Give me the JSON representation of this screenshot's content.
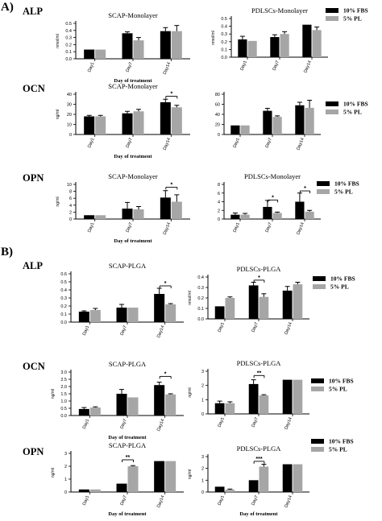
{
  "figure": {
    "panel_a": "A)",
    "panel_b": "B)",
    "legend": {
      "fbs_label": "10% FBS",
      "pl_label": "5% PL"
    },
    "colors": {
      "fbs": "#000000",
      "pl": "#a6a6a6"
    }
  },
  "chart_data": [
    {
      "type": "bar",
      "row_label": "ALP",
      "title": "SCAP-Monolayer",
      "categories": [
        "Day1",
        "Day7",
        "Day14"
      ],
      "ylabel": "nmol/ml",
      "xlabel": "Day of treatment",
      "ylim": [
        0,
        0.5
      ],
      "yticks": [
        "0.0",
        "0.1",
        "0.2",
        "0.3",
        "0.4",
        "0.5"
      ],
      "series": [
        {
          "name": "10% FBS",
          "values": [
            0.13,
            0.36,
            0.39
          ],
          "errors": [
            0.0,
            0.02,
            0.05
          ]
        },
        {
          "name": "5% PL",
          "values": [
            0.13,
            0.26,
            0.39
          ],
          "errors": [
            0.0,
            0.04,
            0.08
          ]
        }
      ],
      "brackets": []
    },
    {
      "type": "bar",
      "title": "PDLSCs-Monolayer",
      "categories": [
        "Day1",
        "Day7",
        "Day14"
      ],
      "ylabel": "nmol/ml",
      "xlabel": "",
      "ylim": [
        0,
        0.5
      ],
      "yticks": [
        "0.0",
        "0.1",
        "0.2",
        "0.3",
        "0.4",
        "0.5"
      ],
      "series": [
        {
          "name": "10% FBS",
          "values": [
            0.23,
            0.26,
            0.42
          ],
          "errors": [
            0.04,
            0.03,
            0.0
          ]
        },
        {
          "name": "5% PL",
          "values": [
            0.21,
            0.3,
            0.35
          ],
          "errors": [
            0.0,
            0.03,
            0.04
          ]
        }
      ],
      "brackets": []
    },
    {
      "type": "bar",
      "row_label": "OCN",
      "title": "SCAP-Monolayer",
      "categories": [
        "Day1",
        "Day7",
        "Day14"
      ],
      "ylabel": "ng/ml",
      "xlabel": "Day of treatment",
      "ylim": [
        0,
        40
      ],
      "yticks": [
        "0",
        "10",
        "20",
        "30",
        "40"
      ],
      "series": [
        {
          "name": "10% FBS",
          "values": [
            18,
            21,
            32
          ],
          "errors": [
            1,
            2,
            3
          ]
        },
        {
          "name": "5% PL",
          "values": [
            18,
            23,
            27
          ],
          "errors": [
            1,
            2,
            2
          ]
        }
      ],
      "brackets": [
        {
          "cat": 2,
          "level": 38,
          "text": "*"
        }
      ]
    },
    {
      "type": "bar",
      "title": "",
      "categories": [
        "Day1",
        "Day7",
        "Day14"
      ],
      "ylabel": "",
      "xlabel": "",
      "ylim": [
        0,
        80
      ],
      "yticks": [
        "0",
        "20",
        "40",
        "60",
        "80"
      ],
      "series": [
        {
          "name": "10% FBS",
          "values": [
            18,
            47,
            58
          ],
          "errors": [
            0,
            5,
            6
          ]
        },
        {
          "name": "5% PL",
          "values": [
            18,
            35,
            53
          ],
          "errors": [
            0,
            2,
            15
          ]
        }
      ],
      "brackets": []
    },
    {
      "type": "bar",
      "row_label": "OPN",
      "title": "SCAP-Monolayer",
      "categories": [
        "Day1",
        "Day7",
        "Day14"
      ],
      "ylabel": "ng/ml",
      "xlabel": "Day of treatment",
      "ylim": [
        0,
        10
      ],
      "yticks": [
        "0",
        "2",
        "4",
        "6",
        "8",
        "10"
      ],
      "series": [
        {
          "name": "10% FBS",
          "values": [
            1.1,
            3.0,
            6.2
          ],
          "errors": [
            0,
            1.8,
            2.0
          ]
        },
        {
          "name": "5% PL",
          "values": [
            1.1,
            2.8,
            5.0
          ],
          "errors": [
            0,
            0.8,
            2.0
          ]
        }
      ],
      "brackets": [
        {
          "cat": 2,
          "level": 9.2,
          "text": "*"
        }
      ]
    },
    {
      "type": "bar",
      "title": "PDLSCs-Monolayer",
      "categories": [
        "Day1",
        "Day7",
        "Day14"
      ],
      "ylabel": "",
      "xlabel": "",
      "ylim": [
        0,
        8
      ],
      "yticks": [
        "0",
        "2",
        "4",
        "6",
        "8"
      ],
      "series": [
        {
          "name": "10% FBS",
          "values": [
            1.0,
            2.8,
            4.0
          ],
          "errors": [
            0.4,
            1.5,
            2.0
          ]
        },
        {
          "name": "5% PL",
          "values": [
            1.0,
            1.4,
            1.7
          ],
          "errors": [
            0.3,
            0.2,
            0.3
          ]
        }
      ],
      "brackets": [
        {
          "cat": 1,
          "level": 4.4,
          "text": "*"
        },
        {
          "cat": 2,
          "level": 6.5,
          "text": "*"
        }
      ]
    },
    {
      "type": "bar",
      "row_label": "ALP",
      "title": "SCAP-PLGA",
      "categories": [
        "Day1",
        "Day7",
        "Day14"
      ],
      "ylabel": "",
      "xlabel": "",
      "ylim": [
        0,
        0.6
      ],
      "yticks": [
        "0.0",
        "0.1",
        "0.2",
        "0.3",
        "0.4",
        "0.5",
        "0.6"
      ],
      "series": [
        {
          "name": "10% FBS",
          "values": [
            0.13,
            0.18,
            0.35
          ],
          "errors": [
            0.01,
            0.04,
            0.07
          ]
        },
        {
          "name": "5% PL",
          "values": [
            0.15,
            0.18,
            0.22
          ],
          "errors": [
            0.02,
            0.0,
            0.01
          ]
        }
      ],
      "brackets": [
        {
          "cat": 2,
          "level": 0.45,
          "text": "*"
        }
      ]
    },
    {
      "type": "bar",
      "title": "PDLSCs-PLGA",
      "categories": [
        "Day1",
        "Day7",
        "Day14"
      ],
      "ylabel": "nmol/ml",
      "xlabel": "",
      "ylim": [
        0,
        0.4
      ],
      "yticks": [
        "0.0",
        "0.1",
        "0.2",
        "0.3",
        "0.4"
      ],
      "series": [
        {
          "name": "10% FBS",
          "values": [
            0.12,
            0.32,
            0.27
          ],
          "errors": [
            0.0,
            0.03,
            0.04
          ]
        },
        {
          "name": "5% PL",
          "values": [
            0.2,
            0.21,
            0.33
          ],
          "errors": [
            0.01,
            0.03,
            0.02
          ]
        }
      ],
      "brackets": [
        {
          "cat": 1,
          "level": 0.37,
          "text": "*"
        }
      ]
    },
    {
      "type": "bar",
      "row_label": "OCN",
      "title": "SCAP-PLGA",
      "categories": [
        "Day1",
        "Day7",
        "Day14"
      ],
      "ylabel": "ng/ml",
      "xlabel": "Day of treatment",
      "ylim": [
        0,
        3.0
      ],
      "yticks": [
        "0.0",
        "0.5",
        "1.0",
        "1.5",
        "2.0",
        "2.5",
        "3.0"
      ],
      "series": [
        {
          "name": "10% FBS",
          "values": [
            0.45,
            1.5,
            2.1
          ],
          "errors": [
            0.1,
            0.3,
            0.2
          ]
        },
        {
          "name": "5% PL",
          "values": [
            0.55,
            1.25,
            1.45
          ],
          "errors": [
            0.05,
            0.0,
            0.05
          ]
        }
      ],
      "brackets": [
        {
          "cat": 2,
          "level": 2.7,
          "text": "*"
        }
      ]
    },
    {
      "type": "bar",
      "title": "PDLSCs-PLGA",
      "categories": [
        "Day1",
        "Day7",
        "Day14"
      ],
      "ylabel": "ng/ml",
      "xlabel": "",
      "ylim": [
        0,
        3.0
      ],
      "yticks": [
        "0",
        "1",
        "2",
        "3"
      ],
      "series": [
        {
          "name": "10% FBS",
          "values": [
            0.75,
            2.1,
            2.4
          ],
          "errors": [
            0.15,
            0.3,
            0.0
          ]
        },
        {
          "name": "5% PL",
          "values": [
            0.75,
            1.3,
            2.4
          ],
          "errors": [
            0.1,
            0.05,
            0.0
          ]
        }
      ],
      "brackets": [
        {
          "cat": 1,
          "level": 2.7,
          "text": "**"
        }
      ]
    },
    {
      "type": "bar",
      "row_label": "OPN",
      "title": "SCAP-PLGA",
      "categories": [
        "Day1",
        "Day7",
        "Day14"
      ],
      "ylabel": "ng/ml",
      "xlabel": "Day of treatment",
      "ylim": [
        0,
        3
      ],
      "yticks": [
        "0",
        "1",
        "2",
        "3"
      ],
      "series": [
        {
          "name": "10% FBS",
          "values": [
            0.2,
            0.65,
            2.4
          ],
          "errors": [
            0,
            0,
            0
          ]
        },
        {
          "name": "5% PL",
          "values": [
            0.2,
            2.0,
            2.4
          ],
          "errors": [
            0,
            0.05,
            0
          ]
        }
      ],
      "brackets": [
        {
          "cat": 1,
          "level": 2.5,
          "text": "**"
        }
      ]
    },
    {
      "type": "bar",
      "title": "PDLSCs-PLGA",
      "categories": [
        "Day1",
        "Day7",
        "Day14"
      ],
      "ylabel": "ng/ml",
      "xlabel": "Day of treatment",
      "ylim": [
        0,
        3
      ],
      "yticks": [
        "0",
        "1",
        "2",
        "3"
      ],
      "series": [
        {
          "name": "10% FBS",
          "values": [
            0.45,
            1.0,
            2.35
          ],
          "errors": [
            0,
            0,
            0
          ]
        },
        {
          "name": "5% PL",
          "values": [
            0.2,
            2.15,
            2.35
          ],
          "errors": [
            0.05,
            0.2,
            0
          ]
        }
      ],
      "brackets": [
        {
          "cat": 1,
          "level": 2.6,
          "text": "***"
        }
      ]
    }
  ]
}
